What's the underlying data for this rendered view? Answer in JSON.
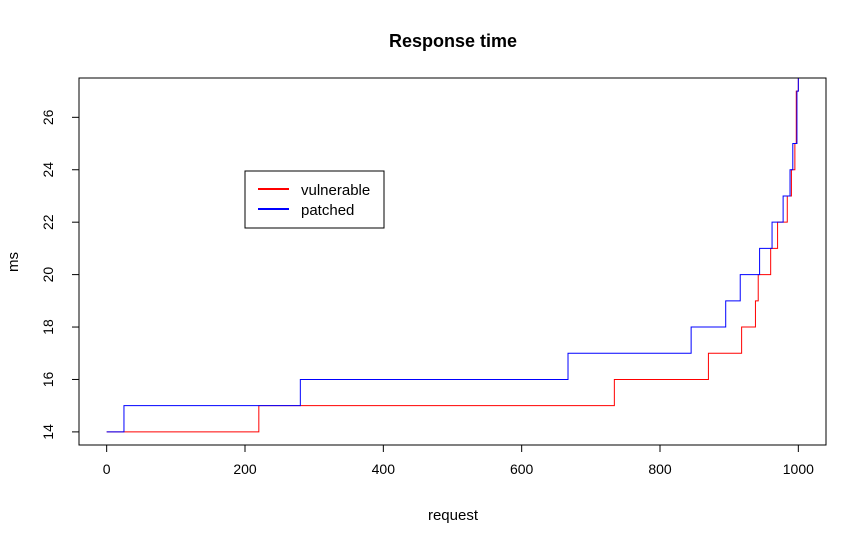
{
  "chart_data": {
    "type": "line",
    "title": "Response time",
    "xlabel": "request",
    "ylabel": "ms",
    "xlim": [
      -40,
      1040
    ],
    "ylim": [
      13.5,
      27.5
    ],
    "x_ticks": [
      0,
      200,
      400,
      600,
      800,
      1000
    ],
    "y_ticks": [
      14,
      16,
      18,
      20,
      22,
      24,
      26
    ],
    "grid": false,
    "legend": "top-left",
    "series": [
      {
        "name": "vulnerable",
        "color": "#ff0000",
        "step": true,
        "x": [
          0,
          220,
          734,
          870,
          918,
          938,
          942,
          960,
          970,
          984,
          990,
          995,
          997,
          1000
        ],
        "y": [
          14,
          15,
          16,
          17,
          18,
          19,
          20,
          21,
          22,
          23,
          24,
          25,
          27,
          28
        ]
      },
      {
        "name": "patched",
        "color": "#0000ff",
        "step": true,
        "x": [
          0,
          25,
          280,
          667,
          845,
          895,
          916,
          944,
          962,
          978,
          988,
          992,
          998,
          1000
        ],
        "y": [
          14,
          15,
          16,
          17,
          18,
          19,
          20,
          21,
          22,
          23,
          24,
          25,
          27,
          28
        ]
      }
    ]
  }
}
